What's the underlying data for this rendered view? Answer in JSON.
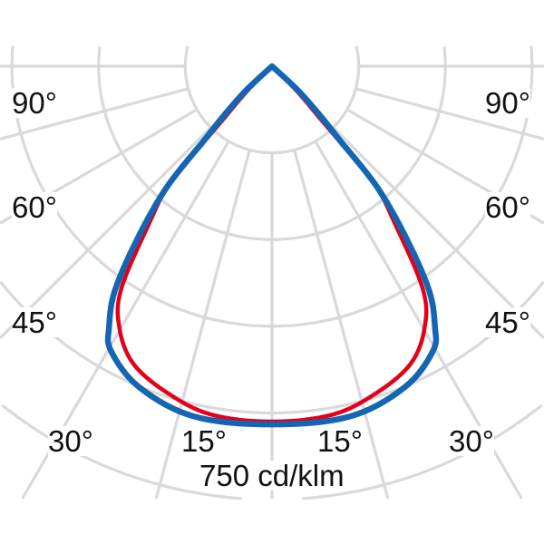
{
  "chart_data": {
    "type": "polar",
    "unit_label": "750 cd/klm",
    "radial_max": 750,
    "radial_ticks": [
      150,
      300,
      450,
      600,
      750
    ],
    "angle_step": 15,
    "angle_labels": {
      "left": [
        "90°",
        "60°",
        "45°",
        "30°",
        "15°"
      ],
      "right": [
        "90°",
        "60°",
        "45°",
        "30°",
        "15°"
      ]
    },
    "grid": true,
    "colors": {
      "grid": "#d9d9d9",
      "blue": "#1466b3",
      "red": "#e3001b"
    },
    "series": [
      {
        "color": "#e3001b",
        "angles": [
          0,
          10,
          18,
          25,
          30,
          34,
          38,
          41,
          42.5,
          45,
          50
        ],
        "values": [
          615,
          612,
          593,
          568,
          527,
          468,
          345,
          267,
          126,
          60,
          0
        ]
      },
      {
        "color": "#1466b3",
        "angles": [
          0,
          12.5,
          22.5,
          29.5,
          32,
          35,
          38,
          41,
          42.5,
          44,
          47,
          50
        ],
        "values": [
          620,
          621,
          601,
          566,
          532,
          474,
          377,
          278,
          173,
          127,
          63,
          0
        ]
      }
    ]
  }
}
